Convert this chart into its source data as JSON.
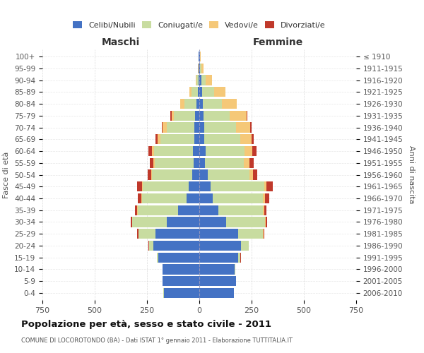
{
  "age_groups": [
    "0-4",
    "5-9",
    "10-14",
    "15-19",
    "20-24",
    "25-29",
    "30-34",
    "35-39",
    "40-44",
    "45-49",
    "50-54",
    "55-59",
    "60-64",
    "65-69",
    "70-74",
    "75-79",
    "80-84",
    "85-89",
    "90-94",
    "95-99",
    "100+"
  ],
  "birth_years": [
    "2006-2010",
    "2001-2005",
    "1996-2000",
    "1991-1995",
    "1986-1990",
    "1981-1985",
    "1976-1980",
    "1971-1975",
    "1966-1970",
    "1961-1965",
    "1956-1960",
    "1951-1955",
    "1946-1950",
    "1941-1945",
    "1936-1940",
    "1931-1935",
    "1926-1930",
    "1921-1925",
    "1916-1920",
    "1911-1915",
    "≤ 1910"
  ],
  "males": {
    "celibe": [
      170,
      175,
      175,
      195,
      220,
      210,
      155,
      100,
      60,
      50,
      35,
      28,
      30,
      25,
      22,
      20,
      12,
      8,
      5,
      3,
      2
    ],
    "coniugato": [
      1,
      1,
      2,
      8,
      20,
      80,
      165,
      195,
      215,
      220,
      190,
      185,
      185,
      160,
      135,
      100,
      60,
      30,
      8,
      2,
      0
    ],
    "vedovo": [
      0,
      0,
      0,
      0,
      1,
      1,
      1,
      2,
      3,
      5,
      6,
      8,
      12,
      15,
      18,
      12,
      18,
      8,
      3,
      1,
      0
    ],
    "divorziato": [
      0,
      0,
      0,
      1,
      2,
      5,
      8,
      12,
      15,
      22,
      15,
      15,
      15,
      8,
      5,
      5,
      1,
      1,
      0,
      0,
      0
    ]
  },
  "females": {
    "nubile": [
      165,
      175,
      170,
      185,
      200,
      185,
      130,
      90,
      65,
      55,
      40,
      28,
      30,
      25,
      22,
      20,
      18,
      15,
      10,
      4,
      2
    ],
    "coniugata": [
      1,
      1,
      3,
      12,
      35,
      120,
      185,
      215,
      240,
      255,
      200,
      185,
      185,
      170,
      155,
      125,
      90,
      55,
      20,
      5,
      2
    ],
    "vedova": [
      0,
      0,
      0,
      0,
      1,
      2,
      3,
      5,
      8,
      10,
      18,
      28,
      40,
      55,
      65,
      80,
      70,
      55,
      30,
      12,
      3
    ],
    "divorziata": [
      0,
      0,
      0,
      1,
      2,
      5,
      8,
      12,
      20,
      30,
      20,
      18,
      18,
      10,
      8,
      5,
      2,
      1,
      0,
      0,
      0
    ]
  },
  "colors": {
    "celibe_nubile": "#4472C4",
    "coniugato_a": "#C8DCA0",
    "vedovo_a": "#F5C878",
    "divorziato_a": "#C0392B"
  },
  "xlim": 750,
  "title": "Popolazione per età, sesso e stato civile - 2011",
  "subtitle": "COMUNE DI LOCOROTONDO (BA) - Dati ISTAT 1° gennaio 2011 - Elaborazione TUTTITALIA.IT",
  "xlabel_left": "Maschi",
  "xlabel_right": "Femmine",
  "ylabel_left": "Fasce di età",
  "ylabel_right": "Anni di nascita",
  "legend_labels": [
    "Celibi/Nubili",
    "Coniugati/e",
    "Vedovi/e",
    "Divorziati/e"
  ],
  "grid_color": "#cccccc"
}
